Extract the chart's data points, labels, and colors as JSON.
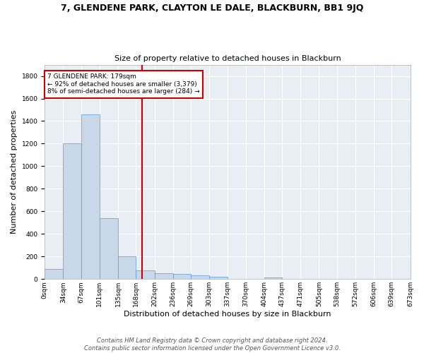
{
  "title": "7, GLENDENE PARK, CLAYTON LE DALE, BLACKBURN, BB1 9JQ",
  "subtitle": "Size of property relative to detached houses in Blackburn",
  "xlabel": "Distribution of detached houses by size in Blackburn",
  "ylabel": "Number of detached properties",
  "bar_color": "#c8d8e8",
  "bar_edge_color": "#5b9bd5",
  "bg_color": "#e8eef4",
  "grid_color": "#ffffff",
  "vline_x": 179,
  "vline_color": "#cc0000",
  "annotation_text": "7 GLENDENE PARK: 179sqm\n← 92% of detached houses are smaller (3,379)\n8% of semi-detached houses are larger (284) →",
  "annotation_box_color": "#cc0000",
  "bin_edges": [
    0,
    34,
    67,
    101,
    135,
    168,
    202,
    236,
    269,
    303,
    337,
    370,
    404,
    437,
    471,
    505,
    538,
    572,
    606,
    639,
    673
  ],
  "bin_labels": [
    "0sqm",
    "34sqm",
    "67sqm",
    "101sqm",
    "135sqm",
    "168sqm",
    "202sqm",
    "236sqm",
    "269sqm",
    "303sqm",
    "337sqm",
    "370sqm",
    "404sqm",
    "437sqm",
    "471sqm",
    "505sqm",
    "538sqm",
    "572sqm",
    "606sqm",
    "639sqm",
    "673sqm"
  ],
  "counts": [
    90,
    1205,
    1460,
    540,
    205,
    75,
    50,
    45,
    30,
    18,
    0,
    0,
    16,
    0,
    0,
    0,
    0,
    0,
    0,
    0
  ],
  "ylim": [
    0,
    1900
  ],
  "yticks": [
    0,
    200,
    400,
    600,
    800,
    1000,
    1200,
    1400,
    1600,
    1800
  ],
  "footer": "Contains HM Land Registry data © Crown copyright and database right 2024.\nContains public sector information licensed under the Open Government Licence v3.0.",
  "title_fontsize": 9,
  "subtitle_fontsize": 8,
  "axis_label_fontsize": 8,
  "tick_fontsize": 6.5,
  "footer_fontsize": 6,
  "fig_width": 6.0,
  "fig_height": 5.0,
  "fig_dpi": 100
}
